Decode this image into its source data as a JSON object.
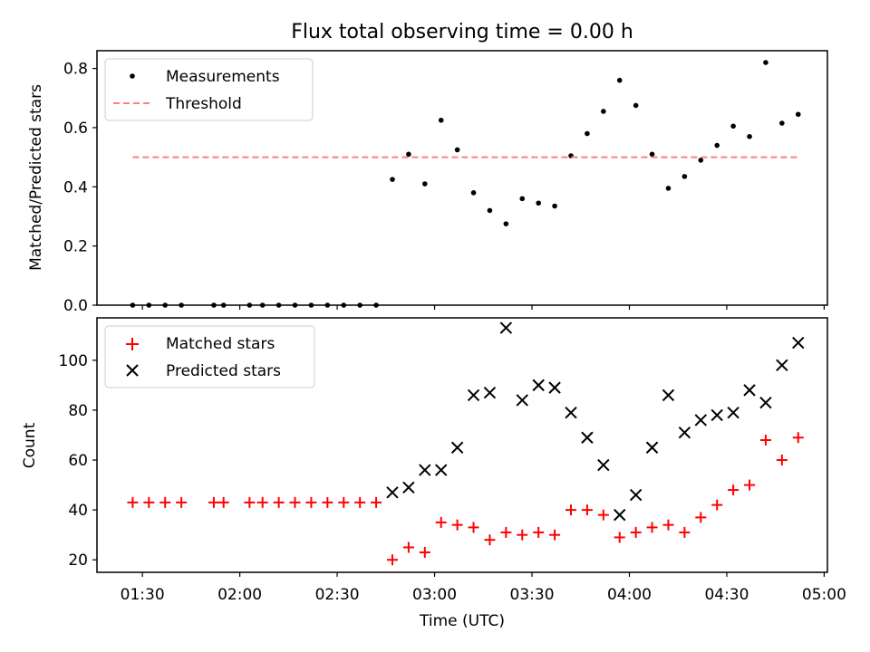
{
  "chart_data": [
    {
      "type": "scatter",
      "title": "Flux total observing time = 0.00 h",
      "xlabel": "",
      "ylabel": "Matched/Predicted stars",
      "xlim": [
        "01:16",
        "05:01"
      ],
      "ylim": [
        0,
        0.86
      ],
      "yticks": [
        0.0,
        0.2,
        0.4,
        0.6,
        0.8
      ],
      "ytick_labels": [
        "0.0",
        "0.2",
        "0.4",
        "0.6",
        "0.8"
      ],
      "grid": false,
      "legend_position": "top-left",
      "series": [
        {
          "name": "Measurements",
          "marker": "dot",
          "color": "#000000",
          "points": [
            {
              "x": "01:27",
              "y": 0.0
            },
            {
              "x": "01:32",
              "y": 0.0
            },
            {
              "x": "01:37",
              "y": 0.0
            },
            {
              "x": "01:42",
              "y": 0.0
            },
            {
              "x": "01:52",
              "y": 0.0
            },
            {
              "x": "01:55",
              "y": 0.0
            },
            {
              "x": "02:03",
              "y": 0.0
            },
            {
              "x": "02:07",
              "y": 0.0
            },
            {
              "x": "02:12",
              "y": 0.0
            },
            {
              "x": "02:17",
              "y": 0.0
            },
            {
              "x": "02:22",
              "y": 0.0
            },
            {
              "x": "02:27",
              "y": 0.0
            },
            {
              "x": "02:32",
              "y": 0.0
            },
            {
              "x": "02:37",
              "y": 0.0
            },
            {
              "x": "02:42",
              "y": 0.0
            },
            {
              "x": "02:47",
              "y": 0.425
            },
            {
              "x": "02:52",
              "y": 0.51
            },
            {
              "x": "02:57",
              "y": 0.41
            },
            {
              "x": "03:02",
              "y": 0.625
            },
            {
              "x": "03:07",
              "y": 0.525
            },
            {
              "x": "03:12",
              "y": 0.38
            },
            {
              "x": "03:17",
              "y": 0.32
            },
            {
              "x": "03:22",
              "y": 0.275
            },
            {
              "x": "03:27",
              "y": 0.36
            },
            {
              "x": "03:32",
              "y": 0.345
            },
            {
              "x": "03:37",
              "y": 0.335
            },
            {
              "x": "03:42",
              "y": 0.505
            },
            {
              "x": "03:47",
              "y": 0.58
            },
            {
              "x": "03:52",
              "y": 0.655
            },
            {
              "x": "03:57",
              "y": 0.76
            },
            {
              "x": "04:02",
              "y": 0.675
            },
            {
              "x": "04:07",
              "y": 0.51
            },
            {
              "x": "04:12",
              "y": 0.395
            },
            {
              "x": "04:17",
              "y": 0.435
            },
            {
              "x": "04:22",
              "y": 0.49
            },
            {
              "x": "04:27",
              "y": 0.54
            },
            {
              "x": "04:32",
              "y": 0.605
            },
            {
              "x": "04:37",
              "y": 0.57
            },
            {
              "x": "04:42",
              "y": 0.82
            },
            {
              "x": "04:47",
              "y": 0.615
            },
            {
              "x": "04:52",
              "y": 0.645
            }
          ]
        },
        {
          "name": "Threshold",
          "style": "dashed-line",
          "color": "#ff7f7f",
          "points": [
            {
              "x": "01:27",
              "y": 0.5
            },
            {
              "x": "04:52",
              "y": 0.5
            }
          ]
        }
      ]
    },
    {
      "type": "scatter",
      "title": "",
      "xlabel": "Time (UTC)",
      "ylabel": "Count",
      "xlim": [
        "01:16",
        "05:01"
      ],
      "ylim": [
        15,
        117
      ],
      "yticks": [
        20,
        40,
        60,
        80,
        100
      ],
      "ytick_labels": [
        "20",
        "40",
        "60",
        "80",
        "100"
      ],
      "xticks": [
        "01:30",
        "02:00",
        "02:30",
        "03:00",
        "03:30",
        "04:00",
        "04:30",
        "05:00"
      ],
      "grid": false,
      "legend_position": "top-left",
      "series": [
        {
          "name": "Matched stars",
          "marker": "plus",
          "color": "#ff0000",
          "points": [
            {
              "x": "01:27",
              "y": 43
            },
            {
              "x": "01:32",
              "y": 43
            },
            {
              "x": "01:37",
              "y": 43
            },
            {
              "x": "01:42",
              "y": 43
            },
            {
              "x": "01:52",
              "y": 43
            },
            {
              "x": "01:55",
              "y": 43
            },
            {
              "x": "02:03",
              "y": 43
            },
            {
              "x": "02:07",
              "y": 43
            },
            {
              "x": "02:12",
              "y": 43
            },
            {
              "x": "02:17",
              "y": 43
            },
            {
              "x": "02:22",
              "y": 43
            },
            {
              "x": "02:27",
              "y": 43
            },
            {
              "x": "02:32",
              "y": 43
            },
            {
              "x": "02:37",
              "y": 43
            },
            {
              "x": "02:42",
              "y": 43
            },
            {
              "x": "02:47",
              "y": 20
            },
            {
              "x": "02:52",
              "y": 25
            },
            {
              "x": "02:57",
              "y": 23
            },
            {
              "x": "03:02",
              "y": 35
            },
            {
              "x": "03:07",
              "y": 34
            },
            {
              "x": "03:12",
              "y": 33
            },
            {
              "x": "03:17",
              "y": 28
            },
            {
              "x": "03:22",
              "y": 31
            },
            {
              "x": "03:27",
              "y": 30
            },
            {
              "x": "03:32",
              "y": 31
            },
            {
              "x": "03:37",
              "y": 30
            },
            {
              "x": "03:42",
              "y": 40
            },
            {
              "x": "03:47",
              "y": 40
            },
            {
              "x": "03:52",
              "y": 38
            },
            {
              "x": "03:57",
              "y": 29
            },
            {
              "x": "04:02",
              "y": 31
            },
            {
              "x": "04:07",
              "y": 33
            },
            {
              "x": "04:12",
              "y": 34
            },
            {
              "x": "04:17",
              "y": 31
            },
            {
              "x": "04:22",
              "y": 37
            },
            {
              "x": "04:27",
              "y": 42
            },
            {
              "x": "04:32",
              "y": 48
            },
            {
              "x": "04:37",
              "y": 50
            },
            {
              "x": "04:42",
              "y": 68
            },
            {
              "x": "04:47",
              "y": 60
            },
            {
              "x": "04:52",
              "y": 69
            }
          ]
        },
        {
          "name": "Predicted stars",
          "marker": "x",
          "color": "#000000",
          "points": [
            {
              "x": "02:47",
              "y": 47
            },
            {
              "x": "02:52",
              "y": 49
            },
            {
              "x": "02:57",
              "y": 56
            },
            {
              "x": "03:02",
              "y": 56
            },
            {
              "x": "03:07",
              "y": 65
            },
            {
              "x": "03:12",
              "y": 86
            },
            {
              "x": "03:17",
              "y": 87
            },
            {
              "x": "03:22",
              "y": 113
            },
            {
              "x": "03:27",
              "y": 84
            },
            {
              "x": "03:32",
              "y": 90
            },
            {
              "x": "03:37",
              "y": 89
            },
            {
              "x": "03:42",
              "y": 79
            },
            {
              "x": "03:47",
              "y": 69
            },
            {
              "x": "03:52",
              "y": 58
            },
            {
              "x": "03:57",
              "y": 38
            },
            {
              "x": "04:02",
              "y": 46
            },
            {
              "x": "04:07",
              "y": 65
            },
            {
              "x": "04:12",
              "y": 86
            },
            {
              "x": "04:17",
              "y": 71
            },
            {
              "x": "04:22",
              "y": 76
            },
            {
              "x": "04:27",
              "y": 78
            },
            {
              "x": "04:32",
              "y": 79
            },
            {
              "x": "04:37",
              "y": 88
            },
            {
              "x": "04:42",
              "y": 83
            },
            {
              "x": "04:47",
              "y": 98
            },
            {
              "x": "04:52",
              "y": 107
            }
          ]
        }
      ]
    }
  ]
}
